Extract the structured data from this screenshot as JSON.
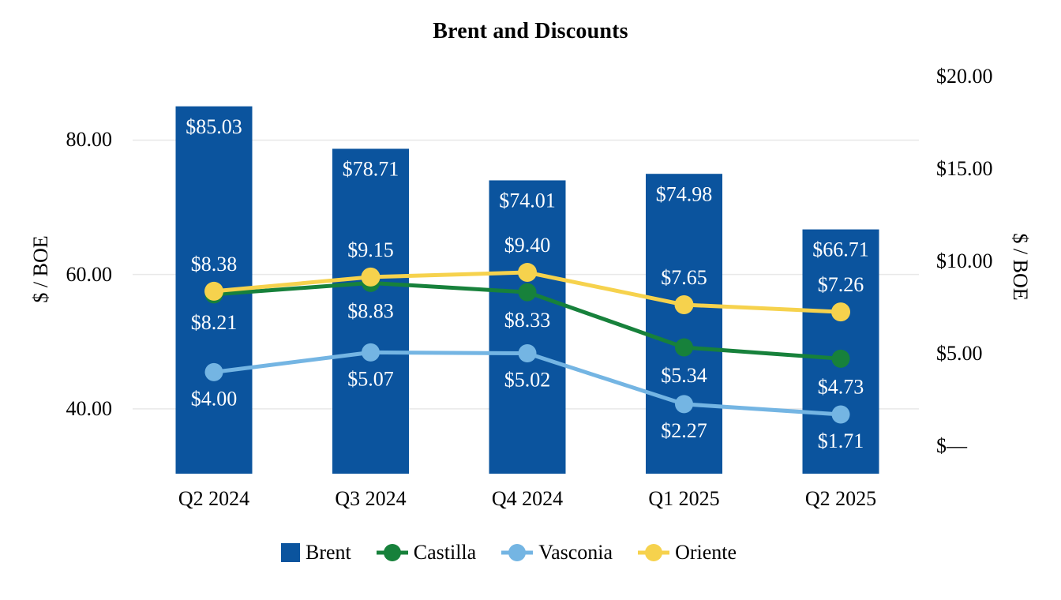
{
  "title": "Brent and Discounts",
  "left_axis": {
    "title": "$ / BOE",
    "tick_labels": [
      "80.00",
      "60.00",
      "40.00"
    ],
    "tick_values": [
      80,
      60,
      40
    ]
  },
  "right_axis": {
    "title": "$ / BOE",
    "tick_labels": [
      "$20.00",
      "$15.00",
      "$10.00",
      "$5.00",
      "$—"
    ],
    "tick_values": [
      20,
      15,
      10,
      5,
      0
    ]
  },
  "chart_data": {
    "type": "bar",
    "subtype": "combo bar+line, dual axis",
    "title": "Brent and Discounts",
    "categories": [
      "Q2 2024",
      "Q3 2024",
      "Q4 2024",
      "Q1 2025",
      "Q2 2025"
    ],
    "series": [
      {
        "name": "Brent",
        "type": "bar",
        "axis": "left",
        "color": "#0B549E",
        "values": [
          85.03,
          78.71,
          74.01,
          74.98,
          66.71
        ],
        "labels": [
          "$85.03",
          "$78.71",
          "$74.01",
          "$74.98",
          "$66.71"
        ]
      },
      {
        "name": "Castilla",
        "type": "line",
        "axis": "right",
        "color": "#17813B",
        "values": [
          8.21,
          8.83,
          8.33,
          5.34,
          4.73
        ],
        "labels": [
          "$8.21",
          "$8.83",
          "$8.33",
          "$5.34",
          "$4.73"
        ]
      },
      {
        "name": "Vasconia",
        "type": "line",
        "axis": "right",
        "color": "#74B5E3",
        "values": [
          4.0,
          5.07,
          5.02,
          2.27,
          1.71
        ],
        "labels": [
          "$4.00",
          "$5.07",
          "$5.02",
          "$2.27",
          "$1.71"
        ]
      },
      {
        "name": "Oriente",
        "type": "line",
        "axis": "right",
        "color": "#F6D24D",
        "values": [
          8.38,
          9.15,
          9.4,
          7.65,
          7.26
        ],
        "labels": [
          "$8.38",
          "$9.15",
          "$9.40",
          "$7.65",
          "$7.26"
        ]
      }
    ],
    "xlabel": "",
    "ylabel_left": "$ / BOE",
    "ylabel_right": "$ / BOE",
    "ylim_left": [
      30,
      88
    ],
    "ylim_right": [
      0,
      20
    ],
    "gridlines": "horizontal at left-axis ticks 40/60/80, light gray",
    "legend_position": "bottom",
    "data_label_color_in_bars": "#FFFFFF"
  },
  "legend": {
    "items": [
      {
        "label": "Brent",
        "marker": "square",
        "color": "#0B549E"
      },
      {
        "label": "Castilla",
        "marker": "line-dot",
        "color": "#17813B"
      },
      {
        "label": "Vasconia",
        "marker": "line-dot",
        "color": "#74B5E3"
      },
      {
        "label": "Oriente",
        "marker": "line-dot",
        "color": "#F6D24D"
      }
    ]
  },
  "colors": {
    "gridline": "#E8E8E8",
    "background": "#FFFFFF",
    "text": "#000000",
    "bar_label_text": "#FFFFFF"
  }
}
